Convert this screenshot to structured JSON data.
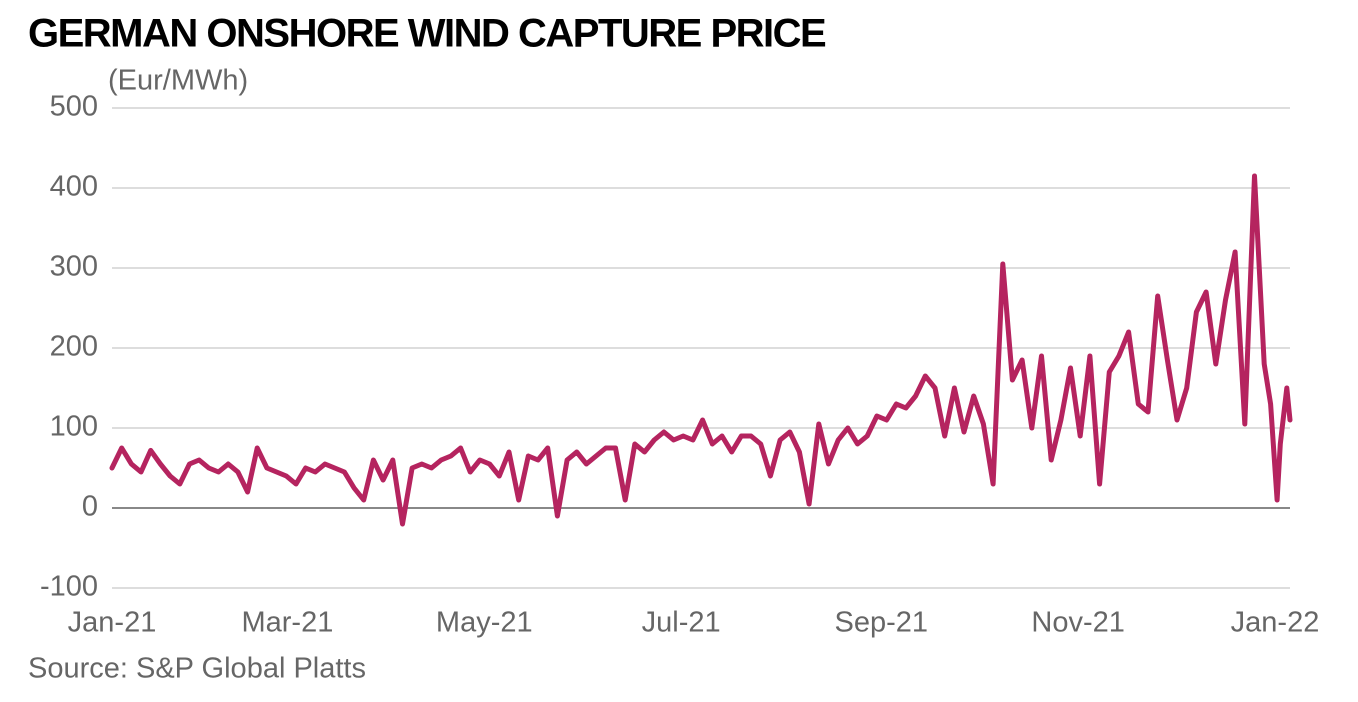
{
  "chart_data": {
    "type": "line",
    "title": "GERMAN ONSHORE WIND CAPTURE PRICE",
    "y_label": "(Eur/MWh)",
    "source": "Source: S&P Global Platts",
    "x": [
      0,
      3,
      6,
      9,
      12,
      15,
      18,
      21,
      24,
      27,
      30,
      33,
      36,
      39,
      42,
      45,
      48,
      51,
      54,
      57,
      60,
      63,
      66,
      69,
      72,
      75,
      78,
      81,
      84,
      87,
      90,
      93,
      96,
      99,
      102,
      105,
      108,
      111,
      114,
      117,
      120,
      123,
      126,
      129,
      132,
      135,
      138,
      141,
      144,
      147,
      150,
      153,
      156,
      159,
      162,
      165,
      168,
      171,
      174,
      177,
      180,
      183,
      186,
      189,
      192,
      195,
      198,
      201,
      204,
      207,
      210,
      213,
      216,
      219,
      222,
      225,
      228,
      231,
      234,
      237,
      240,
      243,
      246,
      249,
      252,
      255,
      258,
      261,
      264,
      267,
      270,
      273,
      276,
      279,
      282,
      285,
      288,
      291,
      294,
      297,
      300,
      303,
      306,
      309,
      312,
      315,
      318,
      321,
      324,
      327,
      330,
      333,
      336,
      339,
      342,
      345,
      348,
      351,
      354,
      357,
      359,
      361,
      362,
      364,
      365
    ],
    "series": [
      {
        "name": "German onshore wind capture price",
        "color": "#b5245f",
        "values": [
          50,
          75,
          55,
          45,
          72,
          55,
          40,
          30,
          55,
          60,
          50,
          45,
          55,
          45,
          20,
          75,
          50,
          45,
          40,
          30,
          50,
          45,
          55,
          50,
          45,
          25,
          10,
          60,
          35,
          60,
          -20,
          50,
          55,
          50,
          60,
          65,
          75,
          45,
          60,
          55,
          40,
          70,
          10,
          65,
          60,
          75,
          -10,
          60,
          70,
          55,
          65,
          75,
          75,
          10,
          80,
          70,
          85,
          95,
          85,
          90,
          85,
          110,
          80,
          90,
          70,
          90,
          90,
          80,
          40,
          85,
          95,
          70,
          5,
          105,
          55,
          85,
          100,
          80,
          90,
          115,
          110,
          130,
          125,
          140,
          165,
          150,
          90,
          150,
          95,
          140,
          105,
          30,
          305,
          160,
          185,
          100,
          190,
          60,
          110,
          175,
          90,
          190,
          30,
          170,
          190,
          220,
          130,
          120,
          265,
          185,
          110,
          150,
          245,
          270,
          180,
          260,
          320,
          105,
          415,
          180,
          130,
          10,
          80,
          150,
          110
        ]
      }
    ],
    "xlim": [
      0,
      365
    ],
    "xticks": [
      {
        "value": 0,
        "label": "Jan-21"
      },
      {
        "value": 59,
        "label": "Mar-21"
      },
      {
        "value": 120,
        "label": "May-21"
      },
      {
        "value": 181,
        "label": "Jul-21"
      },
      {
        "value": 243,
        "label": "Sep-21"
      },
      {
        "value": 304,
        "label": "Nov-21"
      },
      {
        "value": 365,
        "label": "Jan-22"
      }
    ],
    "ylim": [
      -100,
      500
    ],
    "yticks": [
      -100,
      0,
      100,
      200,
      300,
      400,
      500
    ],
    "grid": true
  }
}
